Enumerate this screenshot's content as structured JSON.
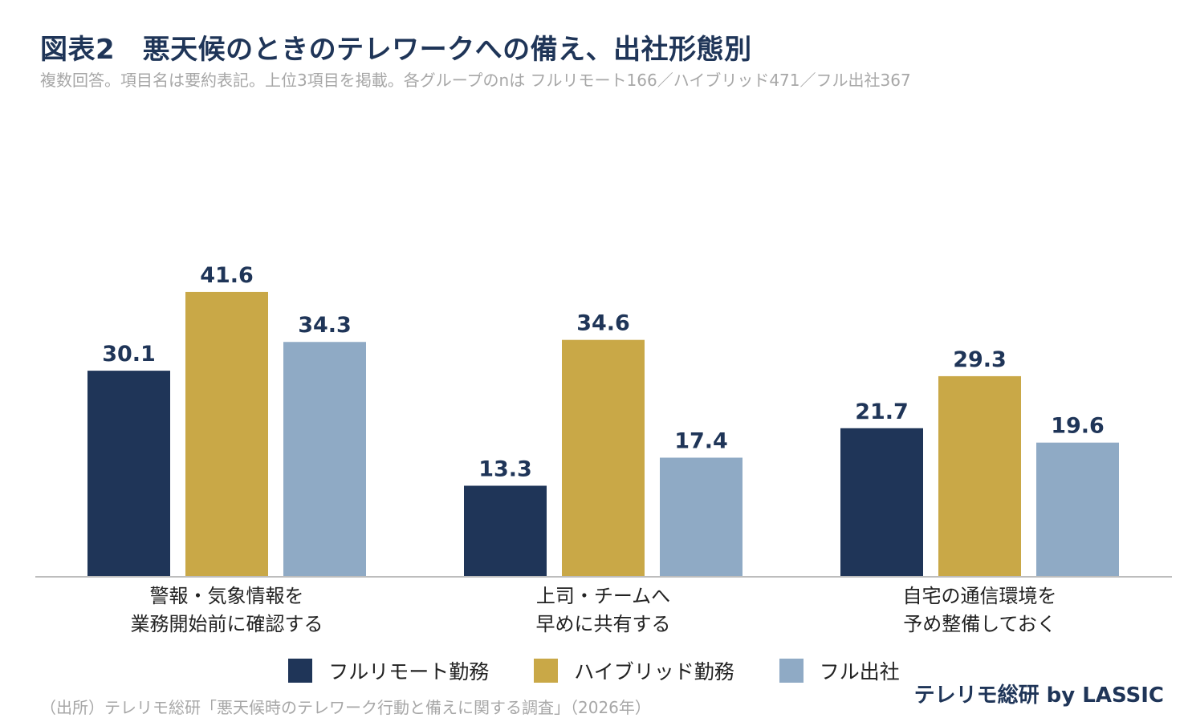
{
  "header": {
    "title": "図表2　悪天候のときのテレワークへの備え、出社形態別",
    "subtitle": "複数回答。項目名は要約表記。上位3項目を掲載。各グループのnは フルリモート166／ハイブリッド471／フル出社367"
  },
  "chart_data": {
    "type": "bar",
    "categories": [
      [
        "警報・気象情報を",
        "業務開始前に確認する"
      ],
      [
        "上司・チームへ",
        "早めに共有する"
      ],
      [
        "自宅の通信環境を",
        "予め整備しておく"
      ]
    ],
    "series": [
      {
        "name": "フルリモート勤務",
        "color": "#1f3558",
        "values": [
          30.1,
          13.3,
          21.7
        ]
      },
      {
        "name": "ハイブリッド勤務",
        "color": "#c9a847",
        "values": [
          41.6,
          34.6,
          29.3
        ]
      },
      {
        "name": "フル出社",
        "color": "#8faac5",
        "values": [
          34.3,
          17.4,
          19.6
        ]
      }
    ],
    "ylim": [
      0,
      45
    ],
    "grid": false,
    "legend": "bottom"
  },
  "footer": {
    "source": "（出所）テレリモ総研「悪天候時のテレワーク行動と備えに関する調査」（2026年）",
    "brand": "テレリモ総研 by LASSIC"
  }
}
